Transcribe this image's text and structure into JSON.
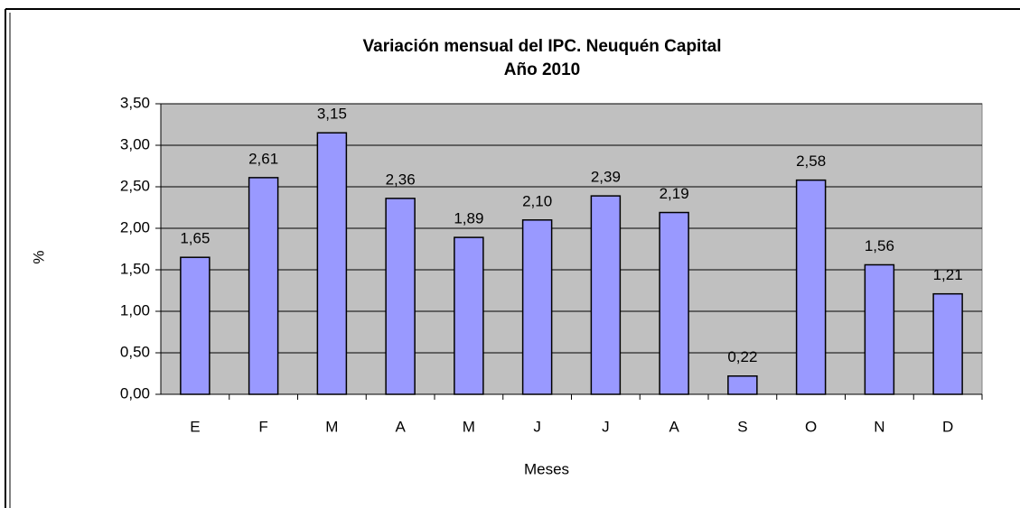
{
  "chart_data": {
    "type": "bar",
    "title": "Variación mensual del IPC. Neuquén Capital",
    "subtitle": "Año 2010",
    "x_label": "Meses",
    "y_label": "%",
    "categories": [
      "E",
      "F",
      "M",
      "A",
      "M",
      "J",
      "J",
      "A",
      "S",
      "O",
      "N",
      "D"
    ],
    "values": [
      1.65,
      2.61,
      3.15,
      2.36,
      1.89,
      2.1,
      2.39,
      2.19,
      0.22,
      2.58,
      1.56,
      1.21
    ],
    "value_labels": [
      "1,65",
      "2,61",
      "3,15",
      "2,36",
      "1,89",
      "2,10",
      "2,39",
      "2,19",
      "0,22",
      "2,58",
      "1,56",
      "1,21"
    ],
    "color": "#9999ff",
    "plot_background": "#c0c0c0",
    "ylim": [
      0,
      3.5
    ],
    "yticks": [
      {
        "value": 0,
        "label": "0,00"
      },
      {
        "value": 0.5,
        "label": "0,50"
      },
      {
        "value": 1,
        "label": "1,00"
      },
      {
        "value": 1.5,
        "label": "1,50"
      },
      {
        "value": 2,
        "label": "2,00"
      },
      {
        "value": 2.5,
        "label": "2,50"
      },
      {
        "value": 3,
        "label": "3,00"
      },
      {
        "value": 3.5,
        "label": "3,50"
      }
    ],
    "grid": true
  }
}
